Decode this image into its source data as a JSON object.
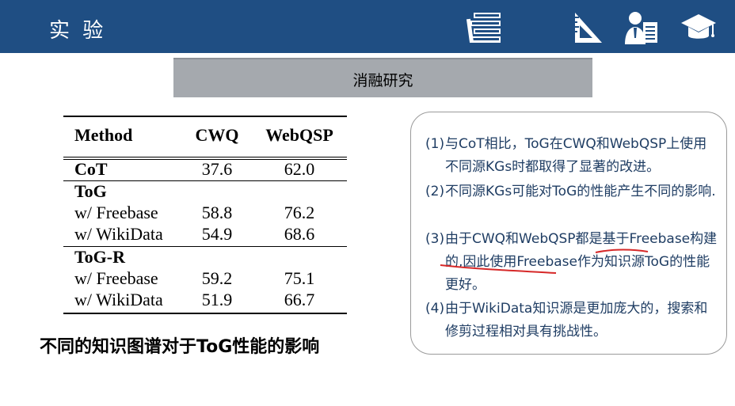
{
  "header": {
    "title": "实 验",
    "bg_color": "#1f4e83",
    "icons": [
      "books-icon",
      "ruler-triangle-icon",
      "teacher-icon",
      "graduation-cap-icon"
    ]
  },
  "section": {
    "subtitle": "消融研究"
  },
  "table": {
    "headers": {
      "method": "Method",
      "cwq": "CWQ",
      "webqsp": "WebQSP"
    },
    "rows": [
      {
        "method": "CoT",
        "cwq": "37.6",
        "webqsp": "62.0",
        "bold": true
      },
      {
        "method": "ToG",
        "cwq": "",
        "webqsp": "",
        "bold": true
      },
      {
        "method": "w/ Freebase",
        "cwq": "58.8",
        "webqsp": "76.2",
        "bold": false
      },
      {
        "method": "w/ WikiData",
        "cwq": "54.9",
        "webqsp": "68.6",
        "bold": false
      },
      {
        "method": "ToG-R",
        "cwq": "",
        "webqsp": "",
        "bold": true
      },
      {
        "method": "w/ Freebase",
        "cwq": "59.2",
        "webqsp": "75.1",
        "bold": false
      },
      {
        "method": "w/ WikiData",
        "cwq": "51.9",
        "webqsp": "66.7",
        "bold": false
      }
    ]
  },
  "caption": "不同的知识图谱对于ToG性能的影响",
  "notes": [
    {
      "num": "(1)",
      "text": "与CoT相比，ToG在CWQ和WebQSP上使用不同源KGs时都取得了显著的改进。"
    },
    {
      "num": "(2)",
      "text": "不同源KGs可能对ToG的性能产生不同的影响."
    },
    {
      "num": "(3)",
      "text": "由于CWQ和WebQSP都是基于Freebase构建的,因此使用Freebase作为知识源ToG的性能更好。"
    },
    {
      "num": "(4)",
      "text": "由于WikiData知识源是更加庞大的，搜索和修剪过程相对具有挑战性。"
    }
  ],
  "colors": {
    "note_text": "#1f3d63",
    "annotation": "#d62828"
  }
}
